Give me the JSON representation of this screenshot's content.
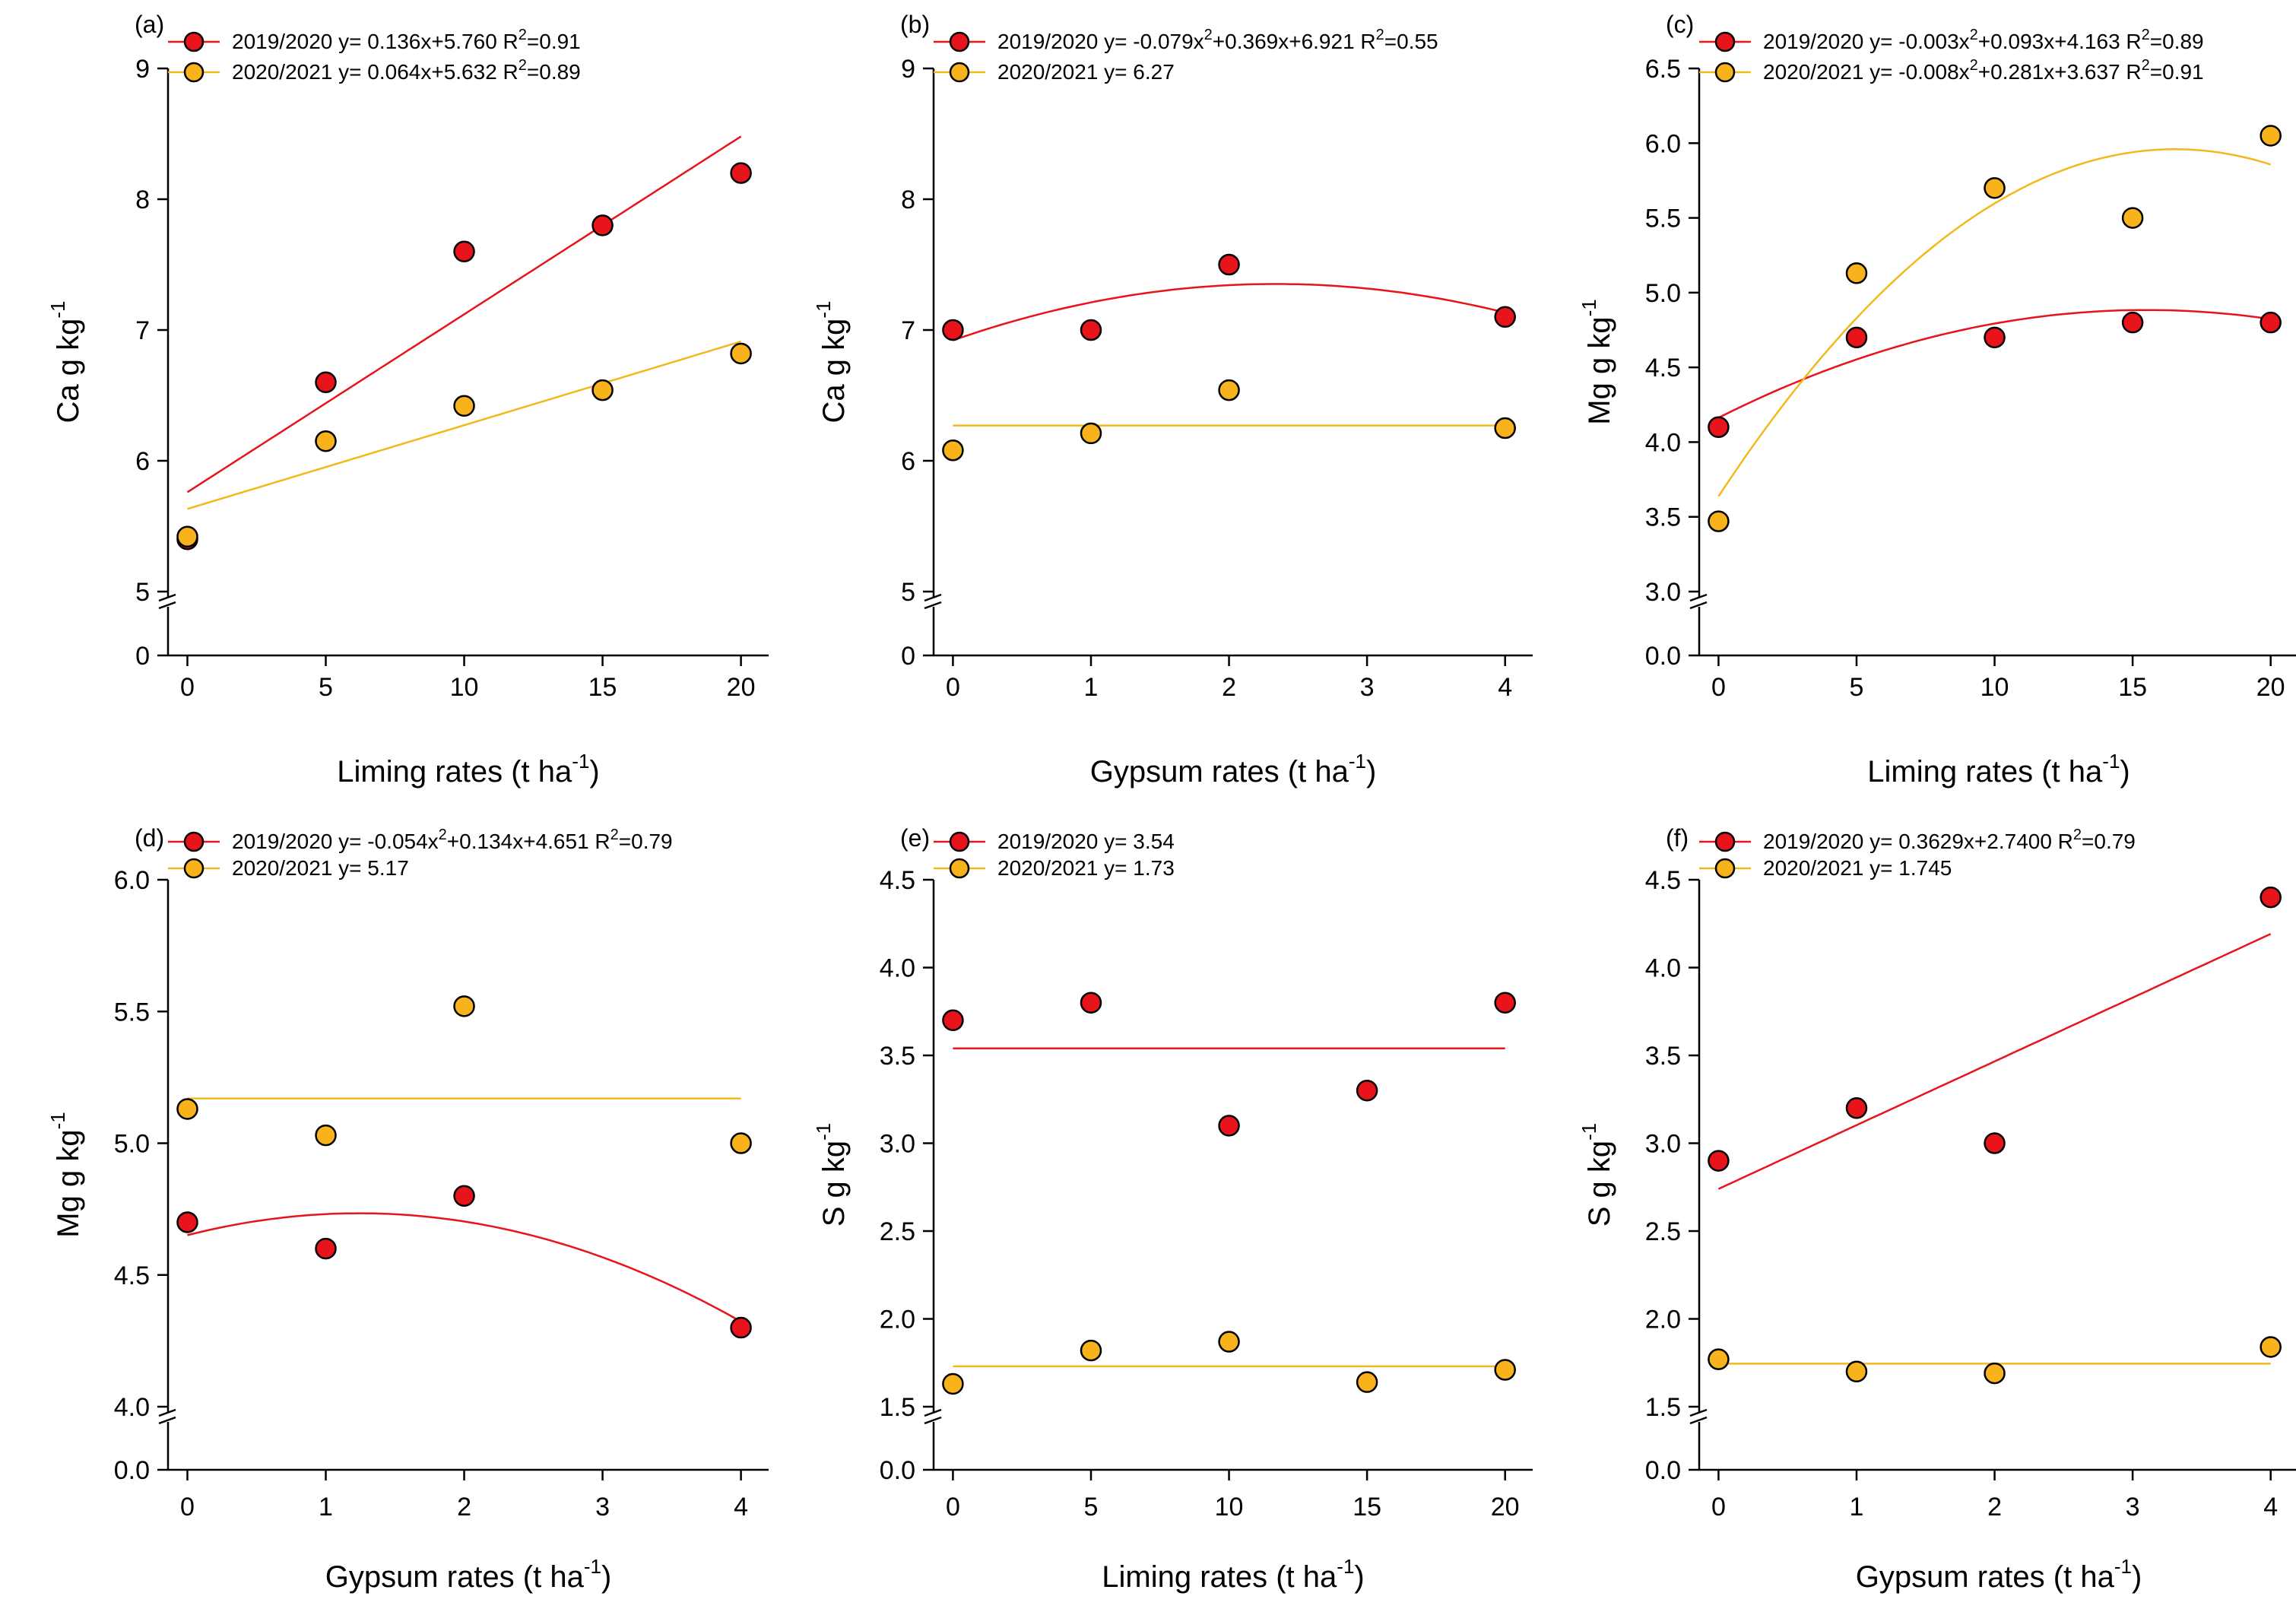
{
  "colors": {
    "s2019": "#e8141b",
    "s2020": "#f8b21c",
    "line2019": "#e8141b",
    "line2020": "#f2b91c"
  },
  "chart_data": [
    {
      "type": "scatter",
      "panel": "(a)",
      "xlabel": "Liming rates (t ha",
      "xlabel_sup": "-1",
      "xlabel_close": ")",
      "ylabel": "Ca g kg",
      "ylabel_sup": "-1",
      "xlim": [
        -0.7,
        21
      ],
      "x_ticks": [
        "0",
        "5",
        "10",
        "15",
        "20"
      ],
      "x_tick_values": [
        0,
        5,
        10,
        15,
        20
      ],
      "ylim": [
        5,
        9
      ],
      "y_ticks": [
        "5",
        "6",
        "7",
        "8",
        "9"
      ],
      "y_tick_values": [
        5,
        6,
        7,
        8,
        9
      ],
      "break_zero": "0",
      "series": [
        {
          "name": "2019/2020",
          "color_key": "s2019",
          "x": [
            0,
            5,
            10,
            15,
            20
          ],
          "y": [
            5.4,
            6.6,
            7.6,
            7.8,
            8.2
          ],
          "equation": "y= 0.136x+5.760 R",
          "eq_sup": "2",
          "eq_tail": "=0.91",
          "fit": {
            "kind": "poly",
            "coef": [
              5.76,
              0.136
            ],
            "xrange": [
              0,
              20
            ]
          }
        },
        {
          "name": "2020/2021",
          "color_key": "s2020",
          "x": [
            0,
            5,
            10,
            15,
            20
          ],
          "y": [
            5.42,
            6.15,
            6.42,
            6.54,
            6.82
          ],
          "equation": "y= 0.064x+5.632 R",
          "eq_sup": "2",
          "eq_tail": "=0.89",
          "fit": {
            "kind": "poly",
            "coef": [
              5.632,
              0.064
            ],
            "xrange": [
              0,
              20
            ]
          }
        }
      ]
    },
    {
      "type": "scatter",
      "panel": "(b)",
      "xlabel": "Gypsum rates (t ha",
      "xlabel_sup": "-1",
      "xlabel_close": ")",
      "ylabel": "Ca g kg",
      "ylabel_sup": "-1",
      "xlim": [
        -0.14,
        4.2
      ],
      "x_ticks": [
        "0",
        "1",
        "2",
        "3",
        "4"
      ],
      "x_tick_values": [
        0,
        1,
        2,
        3,
        4
      ],
      "ylim": [
        5,
        9
      ],
      "y_ticks": [
        "5",
        "6",
        "7",
        "8",
        "9"
      ],
      "y_tick_values": [
        5,
        6,
        7,
        8,
        9
      ],
      "break_zero": "0",
      "series": [
        {
          "name": "2019/2020",
          "color_key": "s2019",
          "x": [
            0,
            1,
            2,
            4
          ],
          "y": [
            7.0,
            7.0,
            7.5,
            7.1
          ],
          "equation": "y= -0.079x",
          "eq_sup": "2",
          "eq_tail": "+0.369x+6.921 R",
          "eq_sup2": "2",
          "eq_tail2": "=0.55",
          "fit": {
            "kind": "poly",
            "coef": [
              6.921,
              0.369,
              -0.079
            ],
            "xrange": [
              0,
              4
            ]
          }
        },
        {
          "name": "2020/2021",
          "color_key": "s2020",
          "x": [
            0,
            1,
            2,
            4
          ],
          "y": [
            6.08,
            6.21,
            6.54,
            6.25
          ],
          "equation": "y= 6.27",
          "fit": {
            "kind": "poly",
            "coef": [
              6.27
            ],
            "xrange": [
              0,
              4
            ]
          }
        }
      ]
    },
    {
      "type": "scatter",
      "panel": "(c)",
      "xlabel": "Liming rates (t ha",
      "xlabel_sup": "-1",
      "xlabel_close": ")",
      "ylabel": "Mg g kg",
      "ylabel_sup": "-1",
      "xlim": [
        -0.7,
        21
      ],
      "x_ticks": [
        "0",
        "5",
        "10",
        "15",
        "20"
      ],
      "x_tick_values": [
        0,
        5,
        10,
        15,
        20
      ],
      "ylim": [
        3.0,
        6.5
      ],
      "y_ticks": [
        "3.0",
        "3.5",
        "4.0",
        "4.5",
        "5.0",
        "5.5",
        "6.0",
        "6.5"
      ],
      "y_tick_values": [
        3.0,
        3.5,
        4.0,
        4.5,
        5.0,
        5.5,
        6.0,
        6.5
      ],
      "break_zero": "0.0",
      "series": [
        {
          "name": "2019/2020",
          "color_key": "s2019",
          "x": [
            0,
            5,
            10,
            15,
            20
          ],
          "y": [
            4.1,
            4.7,
            4.7,
            4.8,
            4.8
          ],
          "equation": "y= -0.003x",
          "eq_sup": "2",
          "eq_tail": "+0.093x+4.163 R",
          "eq_sup2": "2",
          "eq_tail2": "=0.89",
          "fit": {
            "kind": "poly",
            "coef": [
              4.163,
              0.093,
              -0.003
            ],
            "xrange": [
              0,
              20
            ]
          }
        },
        {
          "name": "2020/2021",
          "color_key": "s2020",
          "x": [
            0,
            5,
            10,
            15,
            20
          ],
          "y": [
            3.47,
            5.13,
            5.7,
            5.5,
            6.05
          ],
          "equation": "y= -0.008x",
          "eq_sup": "2",
          "eq_tail": "+0.281x+3.637 R",
          "eq_sup2": "2",
          "eq_tail2": "=0.91",
          "fit": {
            "kind": "poly",
            "coef": [
              3.637,
              0.281,
              -0.0085
            ],
            "xrange": [
              0,
              20
            ]
          }
        }
      ]
    },
    {
      "type": "scatter",
      "panel": "(d)",
      "xlabel": "Gypsum rates (t ha",
      "xlabel_sup": "-1",
      "xlabel_close": ")",
      "ylabel": "Mg g kg",
      "ylabel_sup": "-1",
      "xlim": [
        -0.14,
        4.2
      ],
      "x_ticks": [
        "0",
        "1",
        "2",
        "3",
        "4"
      ],
      "x_tick_values": [
        0,
        1,
        2,
        3,
        4
      ],
      "ylim": [
        4.0,
        6.0
      ],
      "y_ticks": [
        "4.0",
        "4.5",
        "5.0",
        "5.5",
        "6.0"
      ],
      "y_tick_values": [
        4.0,
        4.5,
        5.0,
        5.5,
        6.0
      ],
      "break_zero": "0.0",
      "series": [
        {
          "name": "2019/2020",
          "color_key": "s2019",
          "x": [
            0,
            1,
            2,
            4
          ],
          "y": [
            4.7,
            4.6,
            4.8,
            4.3
          ],
          "equation": "y= -0.054x",
          "eq_sup": "2",
          "eq_tail": "+0.134x+4.651 R",
          "eq_sup2": "2",
          "eq_tail2": "=0.79",
          "fit": {
            "kind": "poly",
            "coef": [
              4.651,
              0.134,
              -0.054
            ],
            "xrange": [
              0,
              4
            ]
          }
        },
        {
          "name": "2020/2021",
          "color_key": "s2020",
          "x": [
            0,
            1,
            2,
            4
          ],
          "y": [
            5.13,
            5.03,
            5.52,
            5.0
          ],
          "equation": "y= 5.17",
          "fit": {
            "kind": "poly",
            "coef": [
              5.17
            ],
            "xrange": [
              0,
              4
            ]
          }
        }
      ]
    },
    {
      "type": "scatter",
      "panel": "(e)",
      "xlabel": "Liming rates (t ha",
      "xlabel_sup": "-1",
      "xlabel_close": ")",
      "ylabel": "S g kg",
      "ylabel_sup": "-1",
      "xlim": [
        -0.7,
        21
      ],
      "x_ticks": [
        "0",
        "5",
        "10",
        "15",
        "20"
      ],
      "x_tick_values": [
        0,
        5,
        10,
        15,
        20
      ],
      "ylim": [
        1.5,
        4.5
      ],
      "y_ticks": [
        "1.5",
        "2.0",
        "2.5",
        "3.0",
        "3.5",
        "4.0",
        "4.5"
      ],
      "y_tick_values": [
        1.5,
        2.0,
        2.5,
        3.0,
        3.5,
        4.0,
        4.5
      ],
      "break_zero": "0.0",
      "series": [
        {
          "name": "2019/2020",
          "color_key": "s2019",
          "x": [
            0,
            5,
            10,
            15,
            20
          ],
          "y": [
            3.7,
            3.8,
            3.1,
            3.3,
            3.8
          ],
          "equation": "y= 3.54",
          "fit": {
            "kind": "poly",
            "coef": [
              3.54
            ],
            "xrange": [
              0,
              20
            ]
          }
        },
        {
          "name": "2020/2021",
          "color_key": "s2020",
          "x": [
            0,
            5,
            10,
            15,
            20
          ],
          "y": [
            1.63,
            1.82,
            1.87,
            1.64,
            1.71
          ],
          "equation": "y= 1.73",
          "fit": {
            "kind": "poly",
            "coef": [
              1.73
            ],
            "xrange": [
              0,
              20
            ]
          }
        }
      ]
    },
    {
      "type": "scatter",
      "panel": "(f)",
      "xlabel": "Gypsum rates (t ha",
      "xlabel_sup": "-1",
      "xlabel_close": ")",
      "ylabel": "S g kg",
      "ylabel_sup": "-1",
      "xlim": [
        -0.14,
        4.2
      ],
      "x_ticks": [
        "0",
        "1",
        "2",
        "3",
        "4"
      ],
      "x_tick_values": [
        0,
        1,
        2,
        3,
        4
      ],
      "ylim": [
        1.5,
        4.5
      ],
      "y_ticks": [
        "1.5",
        "2.0",
        "2.5",
        "3.0",
        "3.5",
        "4.0",
        "4.5"
      ],
      "y_tick_values": [
        1.5,
        2.0,
        2.5,
        3.0,
        3.5,
        4.0,
        4.5
      ],
      "break_zero": "0.0",
      "series": [
        {
          "name": "2019/2020",
          "color_key": "s2019",
          "x": [
            0,
            1,
            2,
            4
          ],
          "y": [
            2.9,
            3.2,
            3.0,
            4.4
          ],
          "equation": "y= 0.3629x+2.7400 R",
          "eq_sup": "2",
          "eq_tail": "=0.79",
          "fit": {
            "kind": "poly",
            "coef": [
              2.74,
              0.3629
            ],
            "xrange": [
              0,
              4
            ]
          }
        },
        {
          "name": "2020/2021",
          "color_key": "s2020",
          "x": [
            0,
            1,
            2,
            4
          ],
          "y": [
            1.77,
            1.7,
            1.69,
            1.84
          ],
          "equation": "y= 1.745",
          "fit": {
            "kind": "poly",
            "coef": [
              1.745
            ],
            "xrange": [
              0,
              4
            ]
          }
        }
      ]
    }
  ]
}
